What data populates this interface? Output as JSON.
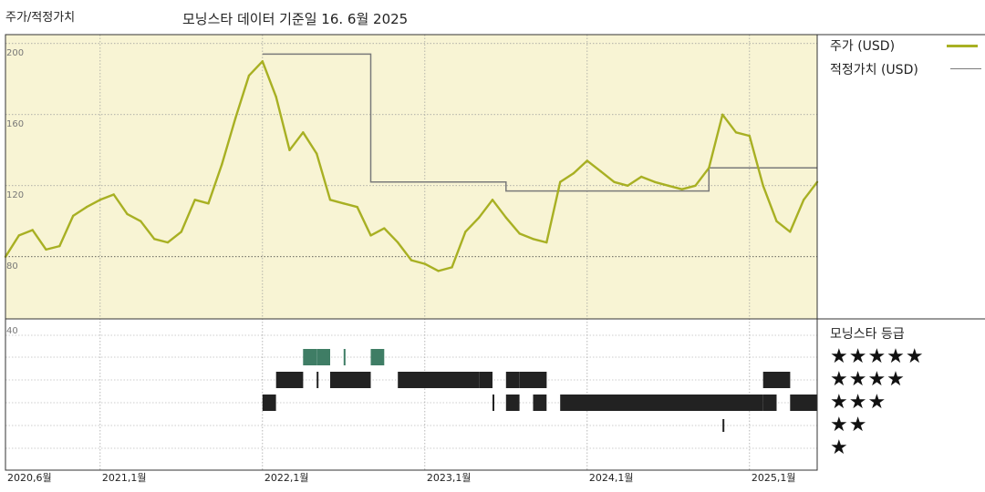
{
  "header": {
    "left_label": "주가/적정가치",
    "title": "모닝스타 데이터 기준일 16. 6월 2025"
  },
  "legend": {
    "price_label": "주가 (USD)",
    "fair_label": "적정가치 (USD)",
    "rating_title": "모닝스타 등급"
  },
  "colors": {
    "price": "#a8b023",
    "fair": "#7a7a7a",
    "upper_bg": "#f8f4d4",
    "rating_5": "#3f7d65",
    "rating_other": "#222222",
    "grid": "#999999"
  },
  "chart_data": [
    {
      "type": "line",
      "x_range": [
        "2020-06",
        "2025-06"
      ],
      "xticks": [
        {
          "date": "2020-06",
          "label": "2020,6월"
        },
        {
          "date": "2021-01",
          "label": "2021,1월"
        },
        {
          "date": "2022-01",
          "label": "2022,1월"
        },
        {
          "date": "2023-01",
          "label": "2023,1월"
        },
        {
          "date": "2024-01",
          "label": "2024,1월"
        },
        {
          "date": "2025-01",
          "label": "2025,1월"
        }
      ],
      "ylim": [
        45,
        205
      ],
      "yticks": [
        {
          "value": 200,
          "label": "200"
        },
        {
          "value": 160,
          "label": "160"
        },
        {
          "value": 120,
          "label": "120"
        },
        {
          "value": 80,
          "label": "80"
        }
      ],
      "price_series": {
        "name": "주가 (USD)",
        "points": [
          [
            "2020-06",
            80
          ],
          [
            "2020-07",
            92
          ],
          [
            "2020-08",
            95
          ],
          [
            "2020-09",
            84
          ],
          [
            "2020-10",
            86
          ],
          [
            "2020-11",
            103
          ],
          [
            "2020-12",
            108
          ],
          [
            "2021-01",
            112
          ],
          [
            "2021-02",
            115
          ],
          [
            "2021-03",
            104
          ],
          [
            "2021-04",
            100
          ],
          [
            "2021-05",
            90
          ],
          [
            "2021-06",
            88
          ],
          [
            "2021-07",
            94
          ],
          [
            "2021-08",
            112
          ],
          [
            "2021-09",
            110
          ],
          [
            "2021-10",
            132
          ],
          [
            "2021-11",
            158
          ],
          [
            "2021-12",
            182
          ],
          [
            "2022-01",
            190
          ],
          [
            "2022-02",
            170
          ],
          [
            "2022-03",
            140
          ],
          [
            "2022-04",
            150
          ],
          [
            "2022-05",
            138
          ],
          [
            "2022-06",
            112
          ],
          [
            "2022-07",
            110
          ],
          [
            "2022-08",
            108
          ],
          [
            "2022-09",
            92
          ],
          [
            "2022-10",
            96
          ],
          [
            "2022-11",
            88
          ],
          [
            "2022-12",
            78
          ],
          [
            "2023-01",
            76
          ],
          [
            "2023-02",
            72
          ],
          [
            "2023-03",
            74
          ],
          [
            "2023-04",
            94
          ],
          [
            "2023-05",
            102
          ],
          [
            "2023-06",
            112
          ],
          [
            "2023-07",
            102
          ],
          [
            "2023-08",
            93
          ],
          [
            "2023-09",
            90
          ],
          [
            "2023-10",
            88
          ],
          [
            "2023-11",
            122
          ],
          [
            "2023-12",
            127
          ],
          [
            "2024-01",
            134
          ],
          [
            "2024-02",
            128
          ],
          [
            "2024-03",
            122
          ],
          [
            "2024-04",
            120
          ],
          [
            "2024-05",
            125
          ],
          [
            "2024-06",
            122
          ],
          [
            "2024-07",
            120
          ],
          [
            "2024-08",
            118
          ],
          [
            "2024-09",
            120
          ],
          [
            "2024-10",
            130
          ],
          [
            "2024-11",
            160
          ],
          [
            "2024-12",
            150
          ],
          [
            "2025-01",
            148
          ],
          [
            "2025-02",
            120
          ],
          [
            "2025-03",
            100
          ],
          [
            "2025-04",
            94
          ],
          [
            "2025-05",
            112
          ],
          [
            "2025-06",
            122
          ]
        ]
      },
      "fair_value_series": {
        "name": "적정가치 (USD)",
        "points": [
          [
            "2022-01",
            194
          ],
          [
            "2022-09",
            194
          ],
          [
            "2022-09",
            122
          ],
          [
            "2023-07",
            122
          ],
          [
            "2023-07",
            117
          ],
          [
            "2024-10",
            117
          ],
          [
            "2024-10",
            130
          ],
          [
            "2025-06",
            130
          ]
        ]
      }
    },
    {
      "type": "rating-bars",
      "title": "모닝스타 등급",
      "ytick_label": "40",
      "levels": [
        {
          "rating": 5,
          "label": "★★★★★"
        },
        {
          "rating": 4,
          "label": "★★★★"
        },
        {
          "rating": 3,
          "label": "★★★"
        },
        {
          "rating": 2,
          "label": "★★"
        },
        {
          "rating": 1,
          "label": "★"
        }
      ],
      "periods": [
        {
          "rating": 5,
          "start": "2022-04",
          "end": "2022-05"
        },
        {
          "rating": 5,
          "start": "2022-05",
          "end": "2022-06"
        },
        {
          "rating": 5,
          "start": "2022-07",
          "end": "2022-07"
        },
        {
          "rating": 5,
          "start": "2022-09",
          "end": "2022-10"
        },
        {
          "rating": 4,
          "start": "2022-02",
          "end": "2022-04"
        },
        {
          "rating": 4,
          "start": "2022-05",
          "end": "2022-05"
        },
        {
          "rating": 4,
          "start": "2022-06",
          "end": "2022-09"
        },
        {
          "rating": 4,
          "start": "2022-11",
          "end": "2023-05"
        },
        {
          "rating": 4,
          "start": "2023-05",
          "end": "2023-06"
        },
        {
          "rating": 4,
          "start": "2023-07",
          "end": "2023-08"
        },
        {
          "rating": 4,
          "start": "2023-08",
          "end": "2023-10"
        },
        {
          "rating": 4,
          "start": "2025-02",
          "end": "2025-04"
        },
        {
          "rating": 3,
          "start": "2022-01",
          "end": "2022-02"
        },
        {
          "rating": 3,
          "start": "2023-06",
          "end": "2023-06"
        },
        {
          "rating": 3,
          "start": "2023-07",
          "end": "2023-08"
        },
        {
          "rating": 3,
          "start": "2023-09",
          "end": "2023-10"
        },
        {
          "rating": 3,
          "start": "2023-11",
          "end": "2025-02"
        },
        {
          "rating": 3,
          "start": "2025-02",
          "end": "2025-03"
        },
        {
          "rating": 3,
          "start": "2025-04",
          "end": "2025-06"
        },
        {
          "rating": 2,
          "start": "2024-11",
          "end": "2024-11"
        }
      ]
    }
  ]
}
